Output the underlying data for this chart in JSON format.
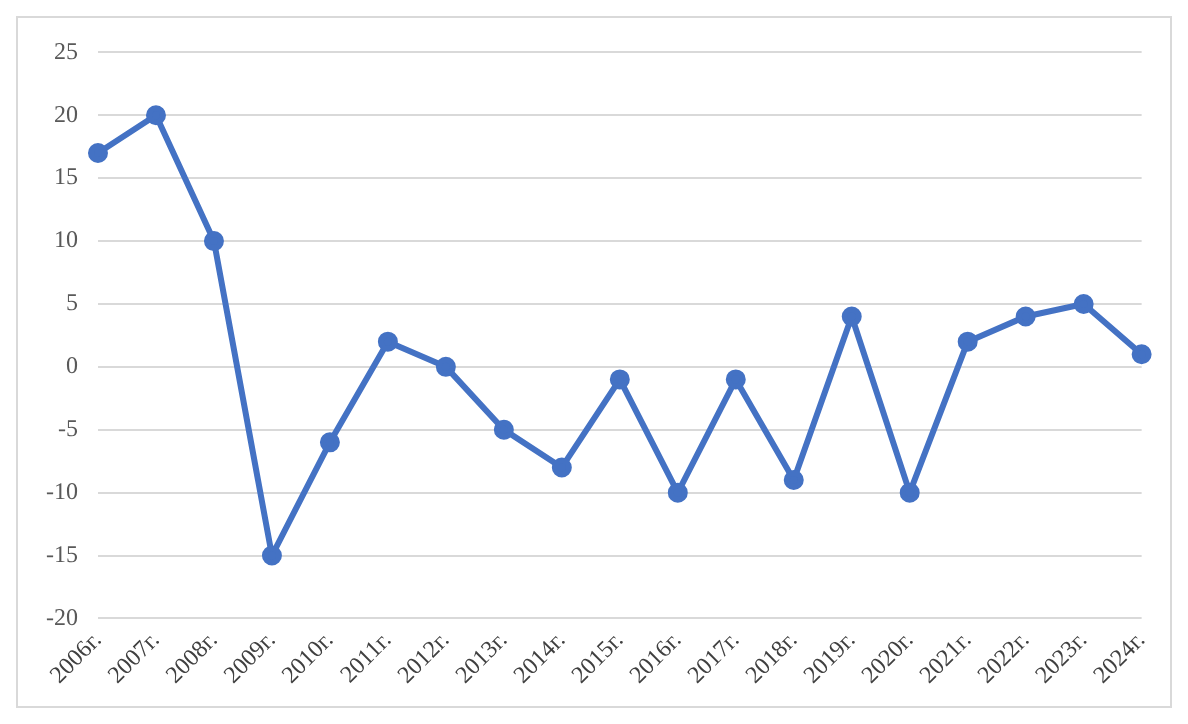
{
  "chart_data": {
    "type": "line",
    "categories": [
      "2006г.",
      "2007г.",
      "2008г.",
      "2009г.",
      "2010г.",
      "2011г.",
      "2012г.",
      "2013г.",
      "2014г.",
      "2015г.",
      "2016г.",
      "2017г.",
      "2018г.",
      "2019г.",
      "2020г.",
      "2021г.",
      "2022г.",
      "2023г.",
      "2024г."
    ],
    "series": [
      {
        "color": "#4472c4",
        "values": [
          17,
          20,
          10,
          -15,
          -6,
          2,
          0,
          -5,
          -8,
          -1,
          -10,
          -1,
          -9,
          4,
          -10,
          2,
          4,
          5,
          1
        ]
      }
    ],
    "ylim": [
      -20,
      25
    ],
    "yticks": [
      -20,
      -15,
      -10,
      -5,
      0,
      5,
      10,
      15,
      20,
      25
    ],
    "grid": "y",
    "marker": "circle",
    "line_style": "solid",
    "legend": false
  }
}
